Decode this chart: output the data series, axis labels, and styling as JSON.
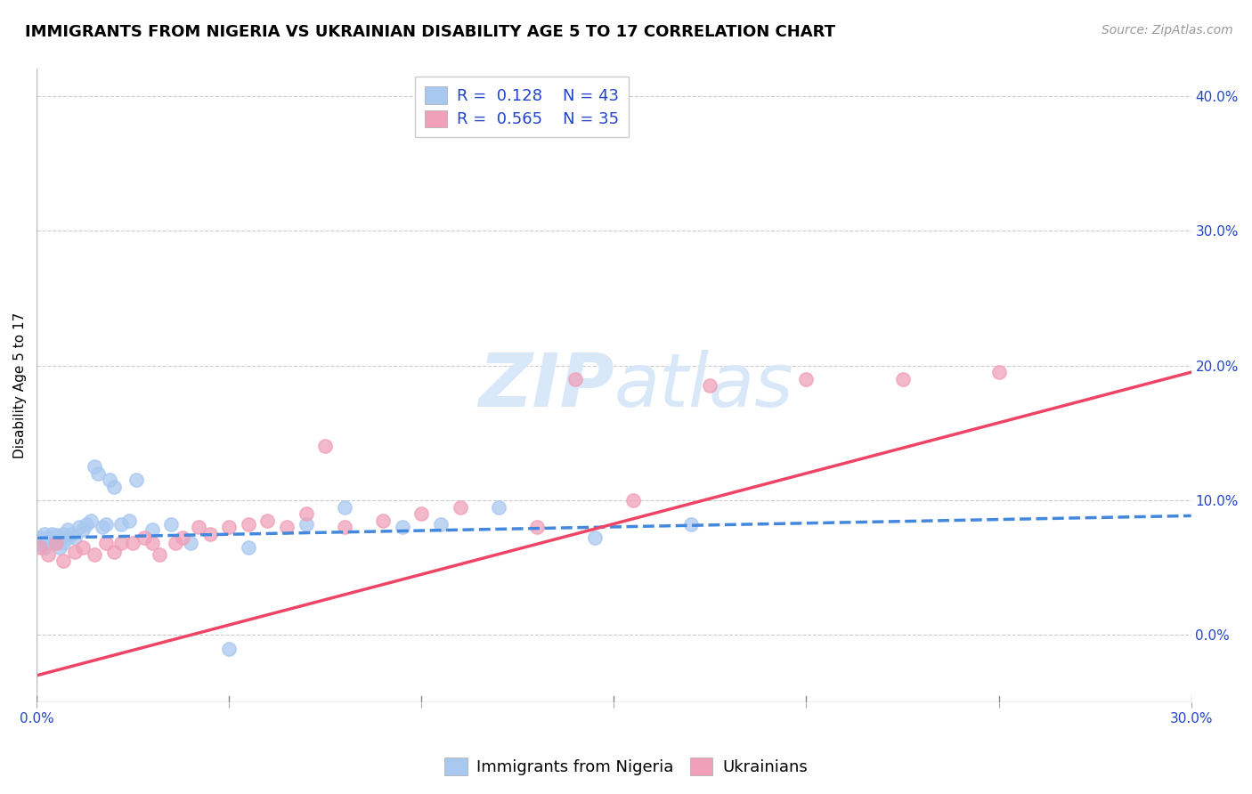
{
  "title": "IMMIGRANTS FROM NIGERIA VS UKRAINIAN DISABILITY AGE 5 TO 17 CORRELATION CHART",
  "source": "Source: ZipAtlas.com",
  "ylabel": "Disability Age 5 to 17",
  "xmin": 0.0,
  "xmax": 0.3,
  "ymin": -0.05,
  "ymax": 0.42,
  "right_yticks": [
    0.0,
    0.1,
    0.2,
    0.3,
    0.4
  ],
  "right_yticklabels": [
    "0.0%",
    "10.0%",
    "20.0%",
    "30.0%",
    "40.0%"
  ],
  "xticks": [
    0.0,
    0.05,
    0.1,
    0.15,
    0.2,
    0.25,
    0.3
  ],
  "series": [
    {
      "name": "Immigrants from Nigeria",
      "color": "#a8c8f0",
      "line_color": "#4488dd",
      "linestyle": "--",
      "R": 0.128,
      "N": 43,
      "slope": 0.055,
      "intercept": 0.072,
      "x": [
        0.001,
        0.001,
        0.002,
        0.002,
        0.003,
        0.003,
        0.004,
        0.004,
        0.005,
        0.005,
        0.006,
        0.006,
        0.007,
        0.007,
        0.008,
        0.008,
        0.009,
        0.01,
        0.011,
        0.012,
        0.013,
        0.014,
        0.015,
        0.016,
        0.017,
        0.018,
        0.019,
        0.02,
        0.022,
        0.024,
        0.026,
        0.03,
        0.035,
        0.04,
        0.05,
        0.055,
        0.07,
        0.08,
        0.095,
        0.105,
        0.12,
        0.145,
        0.17
      ],
      "y": [
        0.068,
        0.072,
        0.065,
        0.075,
        0.068,
        0.072,
        0.07,
        0.075,
        0.068,
        0.074,
        0.065,
        0.07,
        0.068,
        0.075,
        0.072,
        0.078,
        0.075,
        0.072,
        0.08,
        0.078,
        0.082,
        0.085,
        0.125,
        0.12,
        0.08,
        0.082,
        0.115,
        0.11,
        0.082,
        0.085,
        0.115,
        0.078,
        0.082,
        0.068,
        -0.01,
        0.065,
        0.082,
        0.095,
        0.08,
        0.082,
        0.095,
        0.072,
        0.082
      ]
    },
    {
      "name": "Ukrainians",
      "color": "#f0a0b8",
      "line_color": "#ee4466",
      "linestyle": "-",
      "R": 0.565,
      "N": 35,
      "slope": 0.75,
      "intercept": -0.03,
      "x": [
        0.001,
        0.003,
        0.005,
        0.007,
        0.01,
        0.012,
        0.015,
        0.018,
        0.02,
        0.022,
        0.025,
        0.028,
        0.03,
        0.032,
        0.036,
        0.038,
        0.042,
        0.045,
        0.05,
        0.055,
        0.06,
        0.065,
        0.07,
        0.075,
        0.08,
        0.09,
        0.1,
        0.11,
        0.13,
        0.14,
        0.155,
        0.175,
        0.2,
        0.225,
        0.25
      ],
      "y": [
        0.065,
        0.06,
        0.068,
        0.055,
        0.062,
        0.065,
        0.06,
        0.068,
        0.062,
        0.068,
        0.068,
        0.072,
        0.068,
        0.06,
        0.068,
        0.072,
        0.08,
        0.075,
        0.08,
        0.082,
        0.085,
        0.08,
        0.09,
        0.14,
        0.08,
        0.085,
        0.09,
        0.095,
        0.08,
        0.19,
        0.1,
        0.185,
        0.19,
        0.19,
        0.195
      ]
    }
  ],
  "legend_color": "#2244cc",
  "title_fontsize": 13,
  "source_fontsize": 10,
  "axis_label_fontsize": 11,
  "tick_fontsize": 11,
  "legend_fontsize": 13,
  "background_color": "#ffffff",
  "plot_bg_color": "#ffffff",
  "grid_color": "#cccccc",
  "watermark_color": "#d8e8f8",
  "watermark_fontsize": 60
}
